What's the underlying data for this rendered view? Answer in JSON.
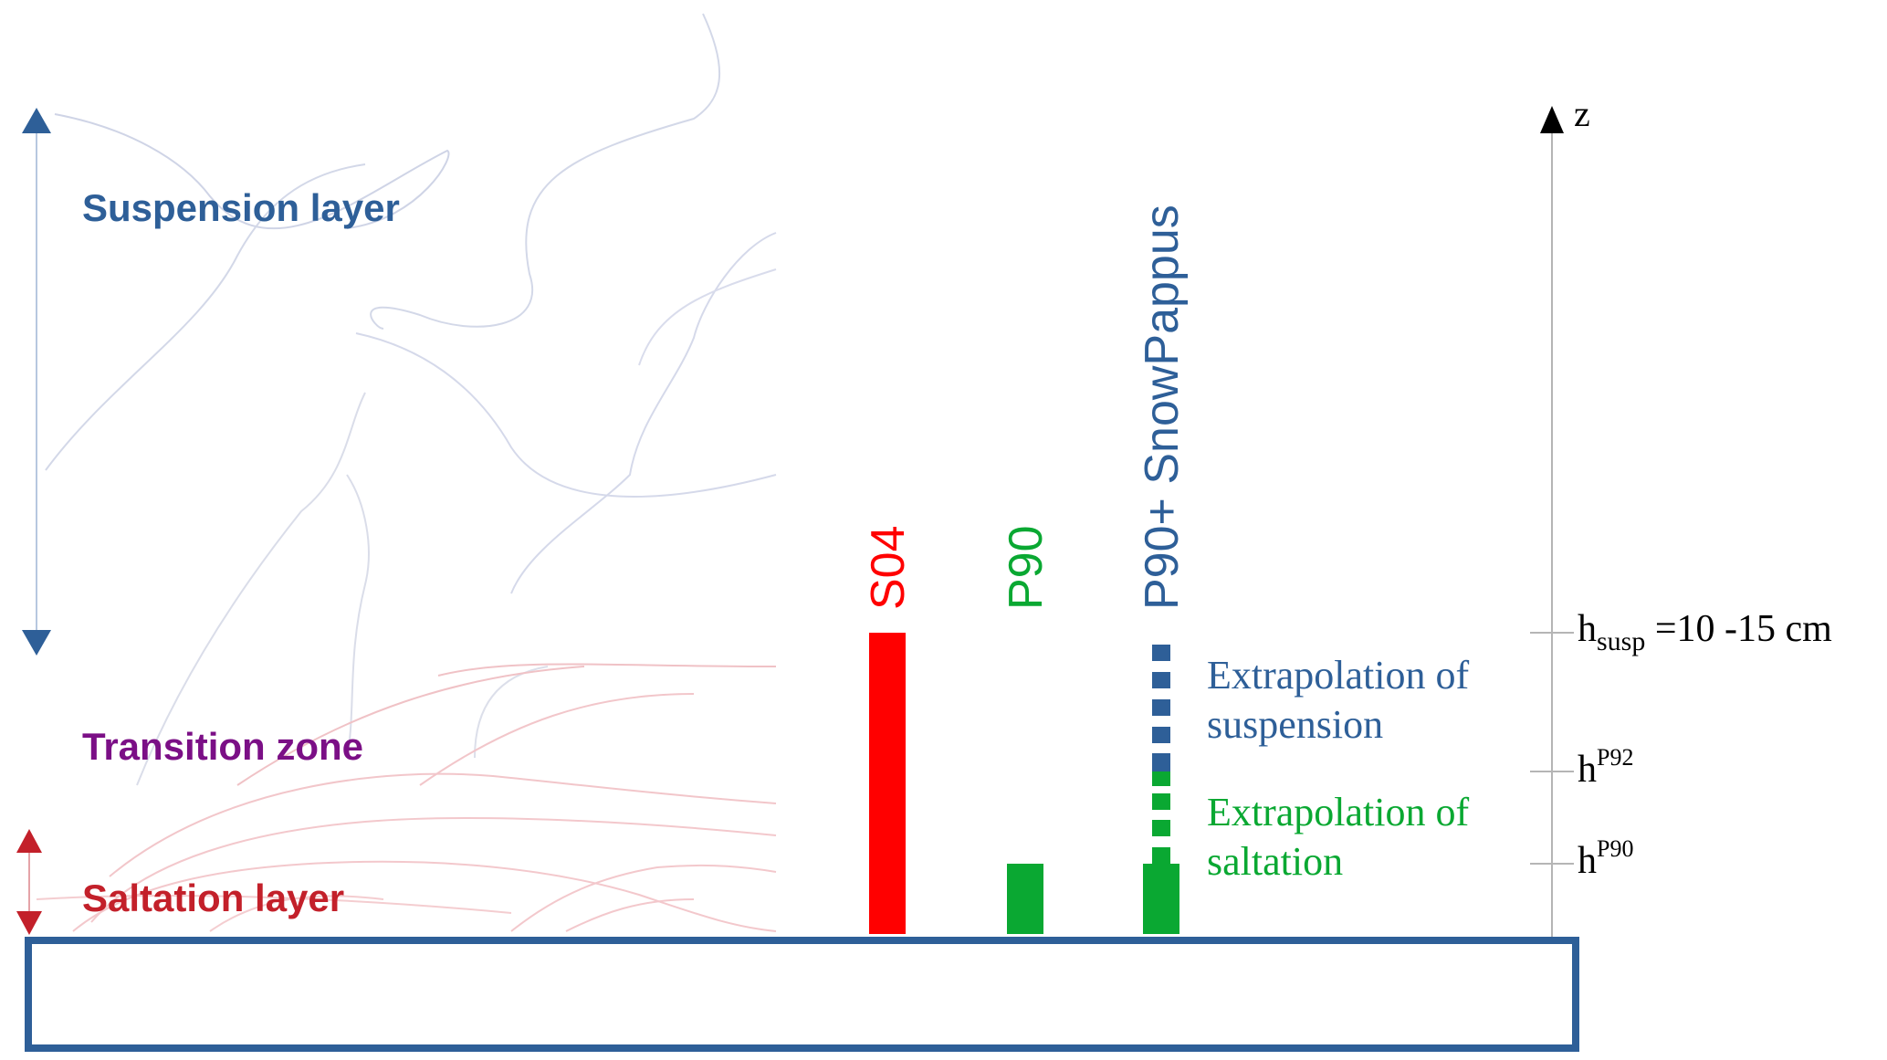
{
  "layers": {
    "suspension": {
      "label": "Suspension layer",
      "color": "#2e5f98"
    },
    "transition": {
      "label": "Transition zone",
      "color": "#7b0f86"
    },
    "saltation": {
      "label": "Saltation layer",
      "color": "#c3202a"
    }
  },
  "axis": {
    "label": "z"
  },
  "heights": {
    "h_susp": {
      "base": "h",
      "sub": "susp",
      "suffix": " =10 -15 cm"
    },
    "h_p92": {
      "base": "h",
      "sup": "P92"
    },
    "h_p90": {
      "base": "h",
      "sup": "P90"
    }
  },
  "schemes": [
    {
      "id": "s04",
      "label": "S04",
      "color": "#ff0000"
    },
    {
      "id": "p90",
      "label": "P90",
      "color": "#0aa832"
    },
    {
      "id": "p90-snowpappus",
      "label": "P90+ SnowPappus",
      "color": "#2e5f98"
    }
  ],
  "annotations": {
    "extrapolation_suspension": {
      "line1": "Extrapolation of",
      "line2": "suspension",
      "color": "#2e5f98"
    },
    "extrapolation_saltation": {
      "line1": "Extrapolation of",
      "line2": "saltation",
      "color": "#0aa832"
    }
  },
  "colors": {
    "ground_border": "#2e5f98",
    "axis": "#000000",
    "trajectory_blue": "#c9cfe3",
    "trajectory_red": "#f2b8bd"
  }
}
